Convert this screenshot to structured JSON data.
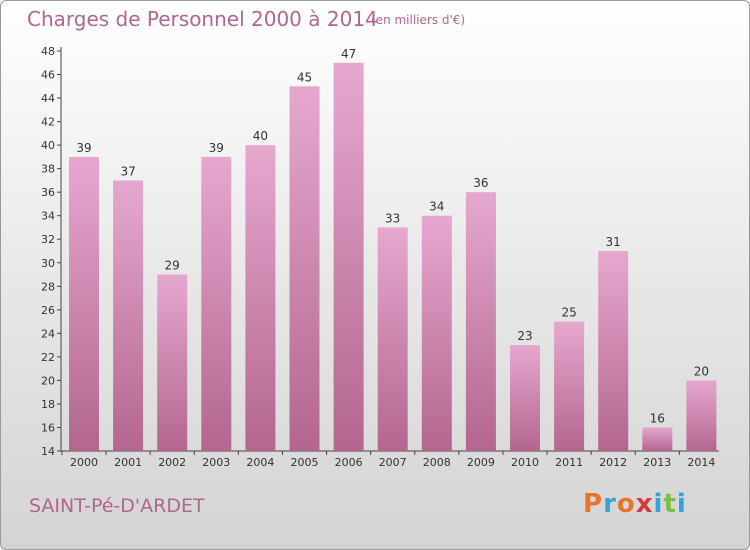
{
  "title": "Charges de Personnel 2000 à 2014",
  "subtitle": "(en milliers d'€)",
  "commune": "SAINT-Pé-D'ARDET",
  "logo_text": "Proxiti",
  "colors": {
    "text_accent": "#b2668e",
    "bar_top": "#e6a8cf",
    "bar_bottom": "#b3668f",
    "logo": [
      "#e8732a",
      "#3aa0d8",
      "#e8732a",
      "#d43a3a",
      "#3aa0d8",
      "#7cc043",
      "#3aa0d8"
    ]
  },
  "chart_data": {
    "type": "bar",
    "title": "Charges de Personnel 2000 à 2014",
    "xlabel": "",
    "ylabel": "",
    "ylim": [
      14,
      48
    ],
    "ytick_step": 2,
    "grid": false,
    "categories": [
      "2000",
      "2001",
      "2002",
      "2003",
      "2004",
      "2005",
      "2006",
      "2007",
      "2008",
      "2009",
      "2010",
      "2011",
      "2012",
      "2013",
      "2014"
    ],
    "values": [
      39,
      37,
      29,
      39,
      40,
      45,
      47,
      33,
      34,
      36,
      23,
      25,
      31,
      16,
      20
    ]
  }
}
